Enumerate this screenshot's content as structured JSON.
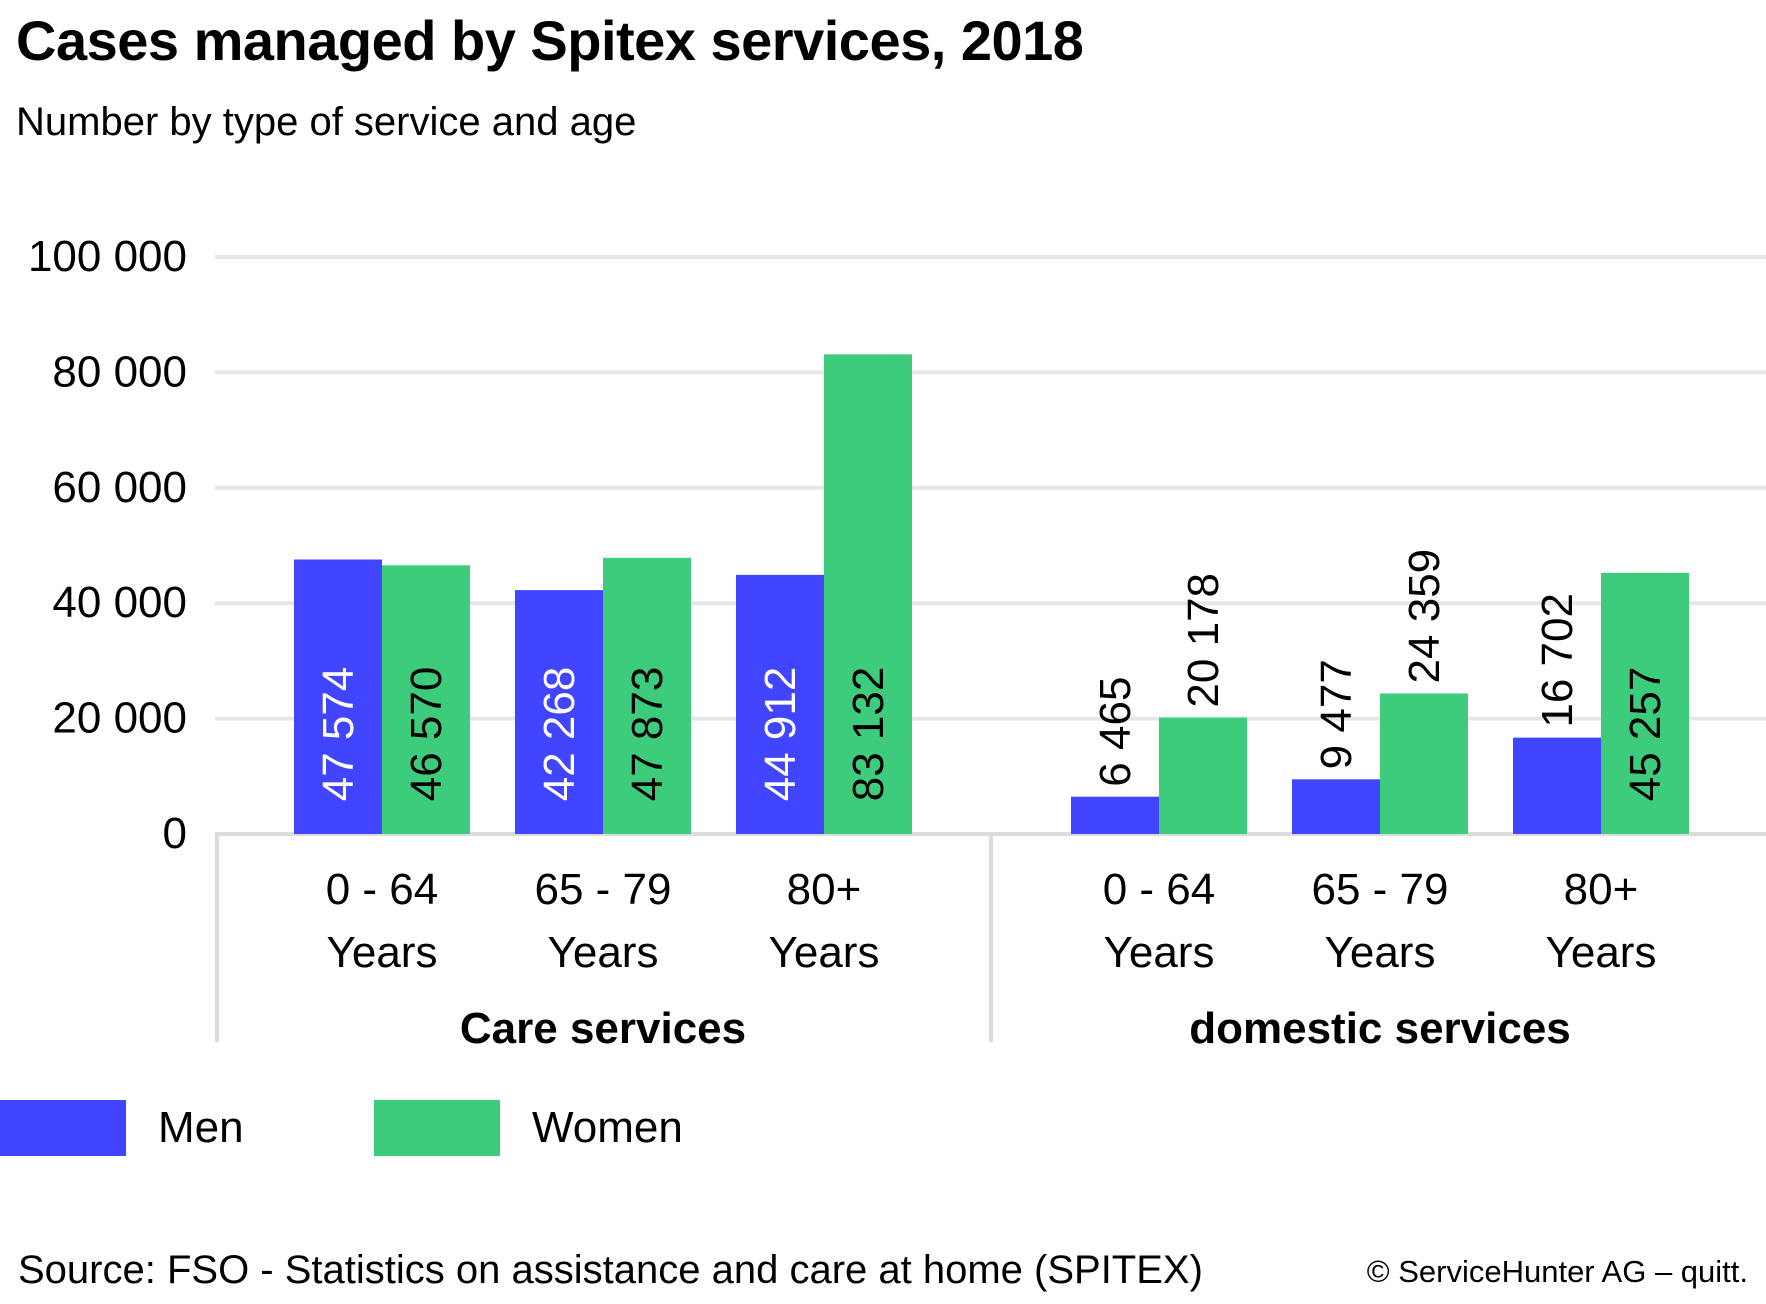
{
  "title": "Cases managed by Spitex services, 2018",
  "subtitle": "Number by type of service and age",
  "chart_data": {
    "type": "bar",
    "ylim": [
      0,
      100000
    ],
    "yticks": [
      0,
      20000,
      40000,
      60000,
      80000,
      100000
    ],
    "ytick_labels": [
      "0",
      "20 000",
      "40 000",
      "60 000",
      "80 000",
      "100 000"
    ],
    "grid": true,
    "legend_position": "bottom-left",
    "groups": [
      {
        "label": "Care services",
        "categories": [
          [
            "0 - 64",
            "Years"
          ],
          [
            "65 - 79",
            "Years"
          ],
          [
            "80+",
            "Years"
          ]
        ],
        "series": [
          {
            "name": "Men",
            "values": [
              47574,
              42268,
              44912
            ],
            "labels": [
              "47 574",
              "42 268",
              "44 912"
            ]
          },
          {
            "name": "Women",
            "values": [
              46570,
              47873,
              83132
            ],
            "labels": [
              "46 570",
              "47 873",
              "83 132"
            ]
          }
        ]
      },
      {
        "label": "domestic services",
        "categories": [
          [
            "0 - 64",
            "Years"
          ],
          [
            "65 - 79",
            "Years"
          ],
          [
            "80+",
            "Years"
          ]
        ],
        "series": [
          {
            "name": "Men",
            "values": [
              6465,
              9477,
              16702
            ],
            "labels": [
              "6 465",
              "9 477",
              "16 702"
            ]
          },
          {
            "name": "Women",
            "values": [
              20178,
              24359,
              45257
            ],
            "labels": [
              "20 178",
              "24 359",
              "45 257"
            ]
          }
        ]
      }
    ],
    "colors": {
      "Men": "#4245ff",
      "Women": "#3dcc7b"
    }
  },
  "legend": [
    {
      "label": "Men",
      "color": "#4245ff"
    },
    {
      "label": "Women",
      "color": "#3dcc7b"
    }
  ],
  "source": "Source: FSO - Statistics on assistance and care at home (SPITEX)",
  "copyright": "© ServiceHunter AG – quitt."
}
